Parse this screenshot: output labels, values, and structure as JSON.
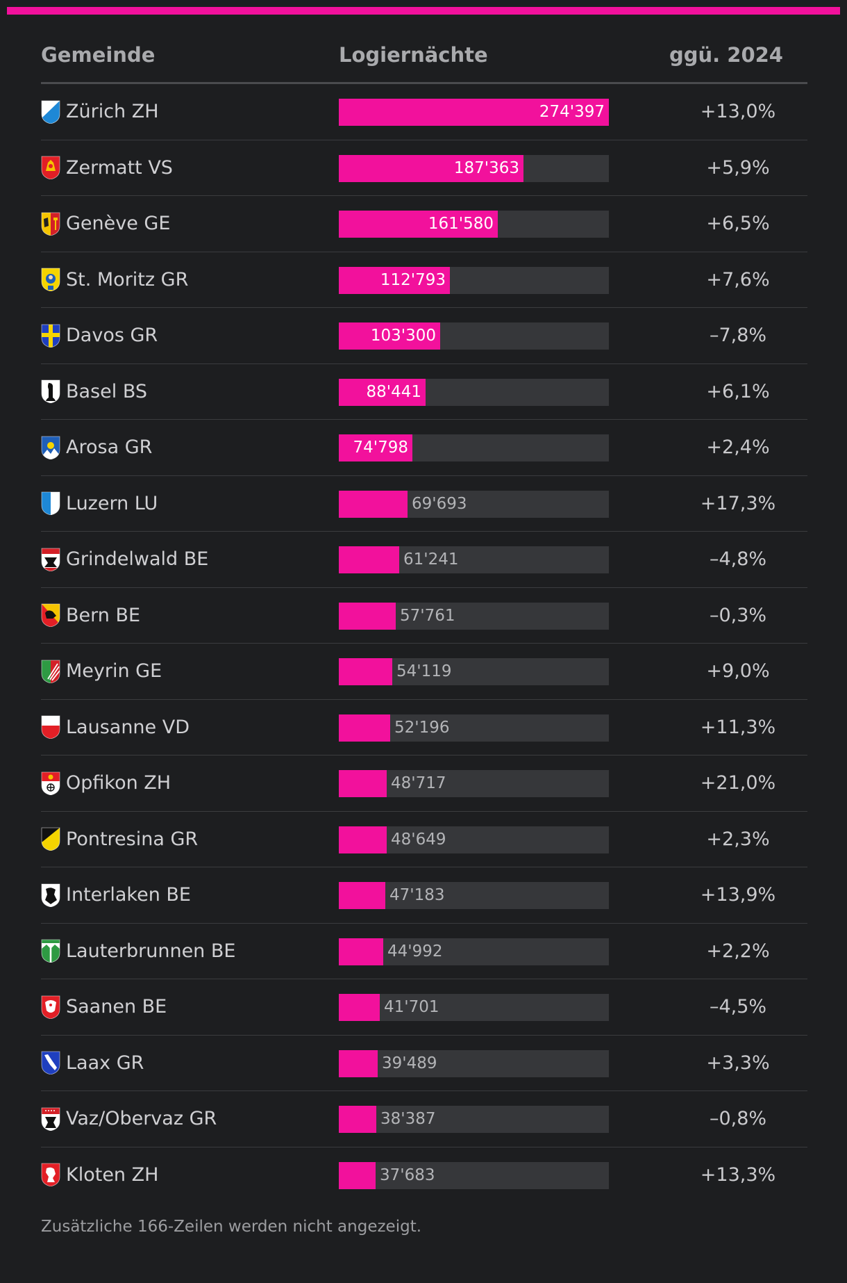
{
  "accent_color": "#f2119c",
  "header": {
    "col_name": "Gemeinde",
    "col_value": "Logiernächte",
    "col_change": "ggü. 2024"
  },
  "chart_data": {
    "type": "bar",
    "orientation": "horizontal",
    "xlim": [
      0,
      274397
    ],
    "categories": [
      "Zürich ZH",
      "Zermatt VS",
      "Genève GE",
      "St. Moritz GR",
      "Davos GR",
      "Basel BS",
      "Arosa GR",
      "Luzern LU",
      "Grindelwald BE",
      "Bern BE",
      "Meyrin GE",
      "Lausanne VD",
      "Opfikon ZH",
      "Pontresina GR",
      "Interlaken BE",
      "Lauterbrunnen BE",
      "Saanen BE",
      "Laax GR",
      "Vaz/Obervaz GR",
      "Kloten ZH"
    ],
    "values": [
      274397,
      187363,
      161580,
      112793,
      103300,
      88441,
      74798,
      69693,
      61241,
      57761,
      54119,
      52196,
      48717,
      48649,
      47183,
      44992,
      41701,
      39489,
      38387,
      37683
    ],
    "rows": [
      {
        "name": "Zürich ZH",
        "value": 274397,
        "label": "274'397",
        "change": "+13,0%",
        "crest": "zurich-crest"
      },
      {
        "name": "Zermatt VS",
        "value": 187363,
        "label": "187'363",
        "change": "+5,9%",
        "crest": "zermatt-crest"
      },
      {
        "name": "Genève GE",
        "value": 161580,
        "label": "161'580",
        "change": "+6,5%",
        "crest": "geneve-crest"
      },
      {
        "name": "St. Moritz GR",
        "value": 112793,
        "label": "112'793",
        "change": "+7,6%",
        "crest": "st-moritz-crest"
      },
      {
        "name": "Davos GR",
        "value": 103300,
        "label": "103'300",
        "change": "–7,8%",
        "crest": "davos-crest"
      },
      {
        "name": "Basel BS",
        "value": 88441,
        "label": "88'441",
        "change": "+6,1%",
        "crest": "basel-crest"
      },
      {
        "name": "Arosa GR",
        "value": 74798,
        "label": "74'798",
        "change": "+2,4%",
        "crest": "arosa-crest"
      },
      {
        "name": "Luzern LU",
        "value": 69693,
        "label": "69'693",
        "change": "+17,3%",
        "crest": "luzern-crest"
      },
      {
        "name": "Grindelwald BE",
        "value": 61241,
        "label": "61'241",
        "change": "–4,8%",
        "crest": "grindelwald-crest"
      },
      {
        "name": "Bern BE",
        "value": 57761,
        "label": "57'761",
        "change": "–0,3%",
        "crest": "bern-crest"
      },
      {
        "name": "Meyrin GE",
        "value": 54119,
        "label": "54'119",
        "change": "+9,0%",
        "crest": "meyrin-crest"
      },
      {
        "name": "Lausanne VD",
        "value": 52196,
        "label": "52'196",
        "change": "+11,3%",
        "crest": "lausanne-crest"
      },
      {
        "name": "Opfikon ZH",
        "value": 48717,
        "label": "48'717",
        "change": "+21,0%",
        "crest": "opfikon-crest"
      },
      {
        "name": "Pontresina GR",
        "value": 48649,
        "label": "48'649",
        "change": "+2,3%",
        "crest": "pontresina-crest"
      },
      {
        "name": "Interlaken BE",
        "value": 47183,
        "label": "47'183",
        "change": "+13,9%",
        "crest": "interlaken-crest"
      },
      {
        "name": "Lauterbrunnen BE",
        "value": 44992,
        "label": "44'992",
        "change": "+2,2%",
        "crest": "lauterbrunnen-crest"
      },
      {
        "name": "Saanen BE",
        "value": 41701,
        "label": "41'701",
        "change": "–4,5%",
        "crest": "saanen-crest"
      },
      {
        "name": "Laax GR",
        "value": 39489,
        "label": "39'489",
        "change": "+3,3%",
        "crest": "laax-crest"
      },
      {
        "name": "Vaz/Obervaz GR",
        "value": 38387,
        "label": "38'387",
        "change": "–0,8%",
        "crest": "vaz-obervaz-crest"
      },
      {
        "name": "Kloten ZH",
        "value": 37683,
        "label": "37'683",
        "change": "+13,3%",
        "crest": "kloten-crest"
      }
    ]
  },
  "footnote": "Zusätzliche 166-Zeilen werden nicht angezeigt."
}
